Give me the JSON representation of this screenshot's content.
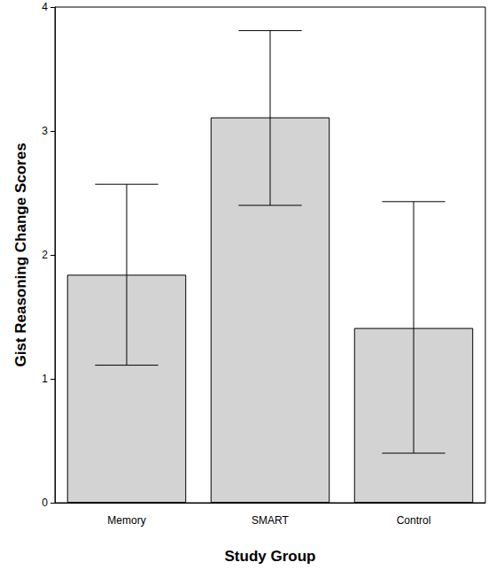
{
  "chart_data": {
    "type": "bar",
    "x_label": "Study Group",
    "y_label": "Gist Reasoning Change Scores",
    "categories": [
      "Memory",
      "SMART",
      "Control"
    ],
    "values": [
      1.84,
      3.11,
      1.41
    ],
    "error_low": [
      1.11,
      2.4,
      0.4
    ],
    "error_high": [
      2.57,
      3.81,
      2.43
    ],
    "color": "#d3d3d3",
    "ylim": [
      0,
      4
    ],
    "yticks": [
      0,
      1,
      2,
      3,
      4
    ],
    "grid": false
  }
}
